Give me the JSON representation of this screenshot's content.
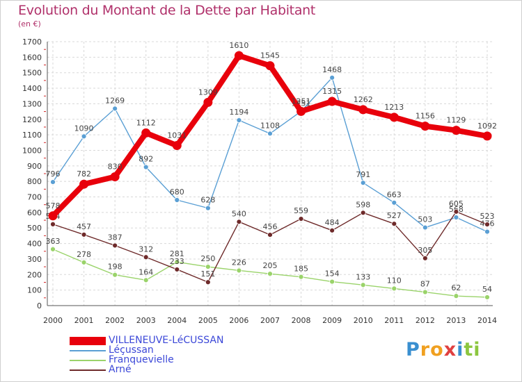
{
  "title": "Evolution du Montant de la Dette par Habitant",
  "unit": "(en €)",
  "brand": {
    "letters": [
      "P",
      "r",
      "o",
      "x",
      "i",
      "t",
      "i"
    ],
    "colors": [
      "#3a8fd0",
      "#f0a020",
      "#f0a020",
      "#e04040",
      "#3a8fd0",
      "#8cc63f",
      "#8cc63f"
    ]
  },
  "chart_data": {
    "type": "line",
    "x": [
      2000,
      2001,
      2002,
      2003,
      2004,
      2005,
      2006,
      2007,
      2008,
      2009,
      2010,
      2011,
      2012,
      2013,
      2014
    ],
    "ylim": [
      0,
      1700
    ],
    "yticks": [
      0,
      100,
      200,
      300,
      400,
      500,
      600,
      700,
      800,
      900,
      1000,
      1100,
      1200,
      1300,
      1400,
      1500,
      1600,
      1700
    ],
    "grid": true,
    "legend": "bottom-left",
    "series": [
      {
        "name": "Léçussan",
        "color": "#5a9fd4",
        "values": [
          796,
          1090,
          1269,
          892,
          680,
          628,
          1194,
          1108,
          1251,
          1468,
          791,
          663,
          503,
          568,
          476
        ],
        "labels": [
          "796",
          "1090",
          "1269",
          "892",
          "680",
          "628",
          "1194",
          "1108",
          "1251",
          "1468",
          "791",
          "663",
          "503",
          "568",
          "476"
        ]
      },
      {
        "name": "Franquevielle",
        "color": "#9ad36a",
        "values": [
          363,
          278,
          198,
          164,
          281,
          250,
          226,
          205,
          185,
          154,
          133,
          110,
          87,
          62,
          54
        ],
        "labels": [
          "363",
          "278",
          "198",
          "164",
          "281",
          "250",
          "226",
          "205",
          "185",
          "154",
          "133",
          "110",
          "87",
          "62",
          "54"
        ]
      },
      {
        "name": "Arné",
        "color": "#6e2a2a",
        "values": [
          524,
          457,
          387,
          312,
          233,
          151,
          540,
          456,
          559,
          484,
          598,
          527,
          305,
          605,
          523
        ],
        "labels": [
          "524",
          "457",
          "387",
          "312",
          "233",
          "151",
          "540",
          "456",
          "559",
          "484",
          "598",
          "527",
          "305",
          "605",
          "523"
        ]
      },
      {
        "name": "VILLENEUVE-LéCUSSAN",
        "color": "#e8000b",
        "values": [
          578,
          782,
          830,
          1112,
          1031,
          1309,
          1610,
          1545,
          1251,
          1315,
          1262,
          1213,
          1156,
          1129,
          1092
        ],
        "labels": [
          "578",
          "782",
          "830",
          "1112",
          "1031",
          "1309",
          "1610",
          "1545",
          "1251",
          "1315",
          "1262",
          "1213",
          "1156",
          "1129",
          "1092"
        ]
      }
    ]
  },
  "legend_items": [
    {
      "label": "VILLENEUVE-LéCUSSAN",
      "color": "#e8000b",
      "text_color": "#3c48d8"
    },
    {
      "label": "Léçussan",
      "color": "#5a9fd4",
      "text_color": "#3c48d8"
    },
    {
      "label": "Franquevielle",
      "color": "#9ad36a",
      "text_color": "#3c48d8"
    },
    {
      "label": "Arné",
      "color": "#6e2a2a",
      "text_color": "#3c48d8"
    }
  ]
}
